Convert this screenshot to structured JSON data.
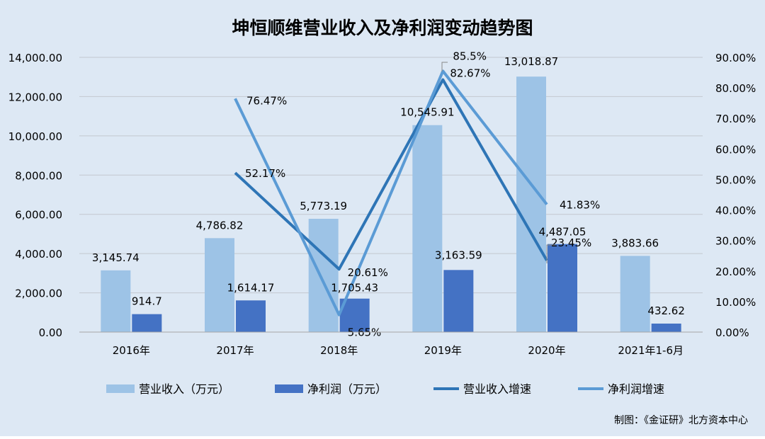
{
  "chart_data": {
    "type": "bar",
    "title": "坤恒顺维营业收入及净利润变动趋势图",
    "categories": [
      "2016年",
      "2017年",
      "2018年",
      "2019年",
      "2020年",
      "2021年1-6月"
    ],
    "y_left": {
      "ylim": [
        0,
        14000
      ],
      "ticks": [
        "0.00",
        "2,000.00",
        "4,000.00",
        "6,000.00",
        "8,000.00",
        "10,000.00",
        "12,000.00",
        "14,000.00"
      ]
    },
    "y_right": {
      "ylim": [
        0,
        90
      ],
      "ticks": [
        "0.00%",
        "10.00%",
        "20.00%",
        "30.00%",
        "40.00%",
        "50.00%",
        "60.00%",
        "70.00%",
        "80.00%",
        "90.00%"
      ]
    },
    "series": [
      {
        "name": "营业收入（万元）",
        "type": "bar",
        "axis": "left",
        "color": "#9dc3e6",
        "values": [
          3145.74,
          4786.82,
          5773.19,
          10545.91,
          13018.87,
          3883.66
        ],
        "labels": [
          "3,145.74",
          "4,786.82",
          "5,773.19",
          "10,545.91",
          "13,018.87",
          "3,883.66"
        ]
      },
      {
        "name": "净利润（万元）",
        "type": "bar",
        "axis": "left",
        "color": "#4472c4",
        "values": [
          914.7,
          1614.17,
          1705.43,
          3163.59,
          4487.05,
          432.62
        ],
        "labels": [
          "914.7",
          "1,614.17",
          "1,705.43",
          "3,163.59",
          "4,487.05",
          "432.62"
        ]
      },
      {
        "name": "营业收入增速",
        "type": "line",
        "axis": "right",
        "color": "#2e75b6",
        "values": [
          null,
          52.17,
          20.61,
          82.67,
          23.45,
          null
        ],
        "labels": [
          null,
          "52.17%",
          "20.61%",
          "82.67%",
          "23.45%",
          null
        ]
      },
      {
        "name": "净利润增速",
        "type": "line",
        "axis": "right",
        "color": "#5b9bd5",
        "values": [
          null,
          76.47,
          5.65,
          85.5,
          41.83,
          null
        ],
        "labels": [
          null,
          "76.47%",
          "5.65%",
          "85.5%",
          "41.83%",
          null
        ]
      }
    ],
    "legend_position": "bottom",
    "grid": true
  },
  "footer": {
    "source": "制图：《金证研》北方资本中心"
  }
}
